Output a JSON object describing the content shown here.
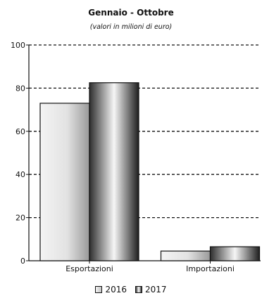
{
  "chart_data": {
    "type": "bar",
    "title": "Gennaio - Ottobre",
    "subtitle": "(valori in milioni di euro)",
    "xlabel": "",
    "ylabel": "",
    "categories": [
      "Esportazioni",
      "Importazioni"
    ],
    "series": [
      {
        "name": "2016",
        "values": [
          73,
          4.5
        ]
      },
      {
        "name": "2017",
        "values": [
          82.5,
          6.5
        ]
      }
    ],
    "ylim": [
      0,
      100
    ],
    "yticks": [
      "0",
      "20",
      "40",
      "60",
      "80",
      "100"
    ],
    "grid": true,
    "legend_position": "bottom"
  }
}
